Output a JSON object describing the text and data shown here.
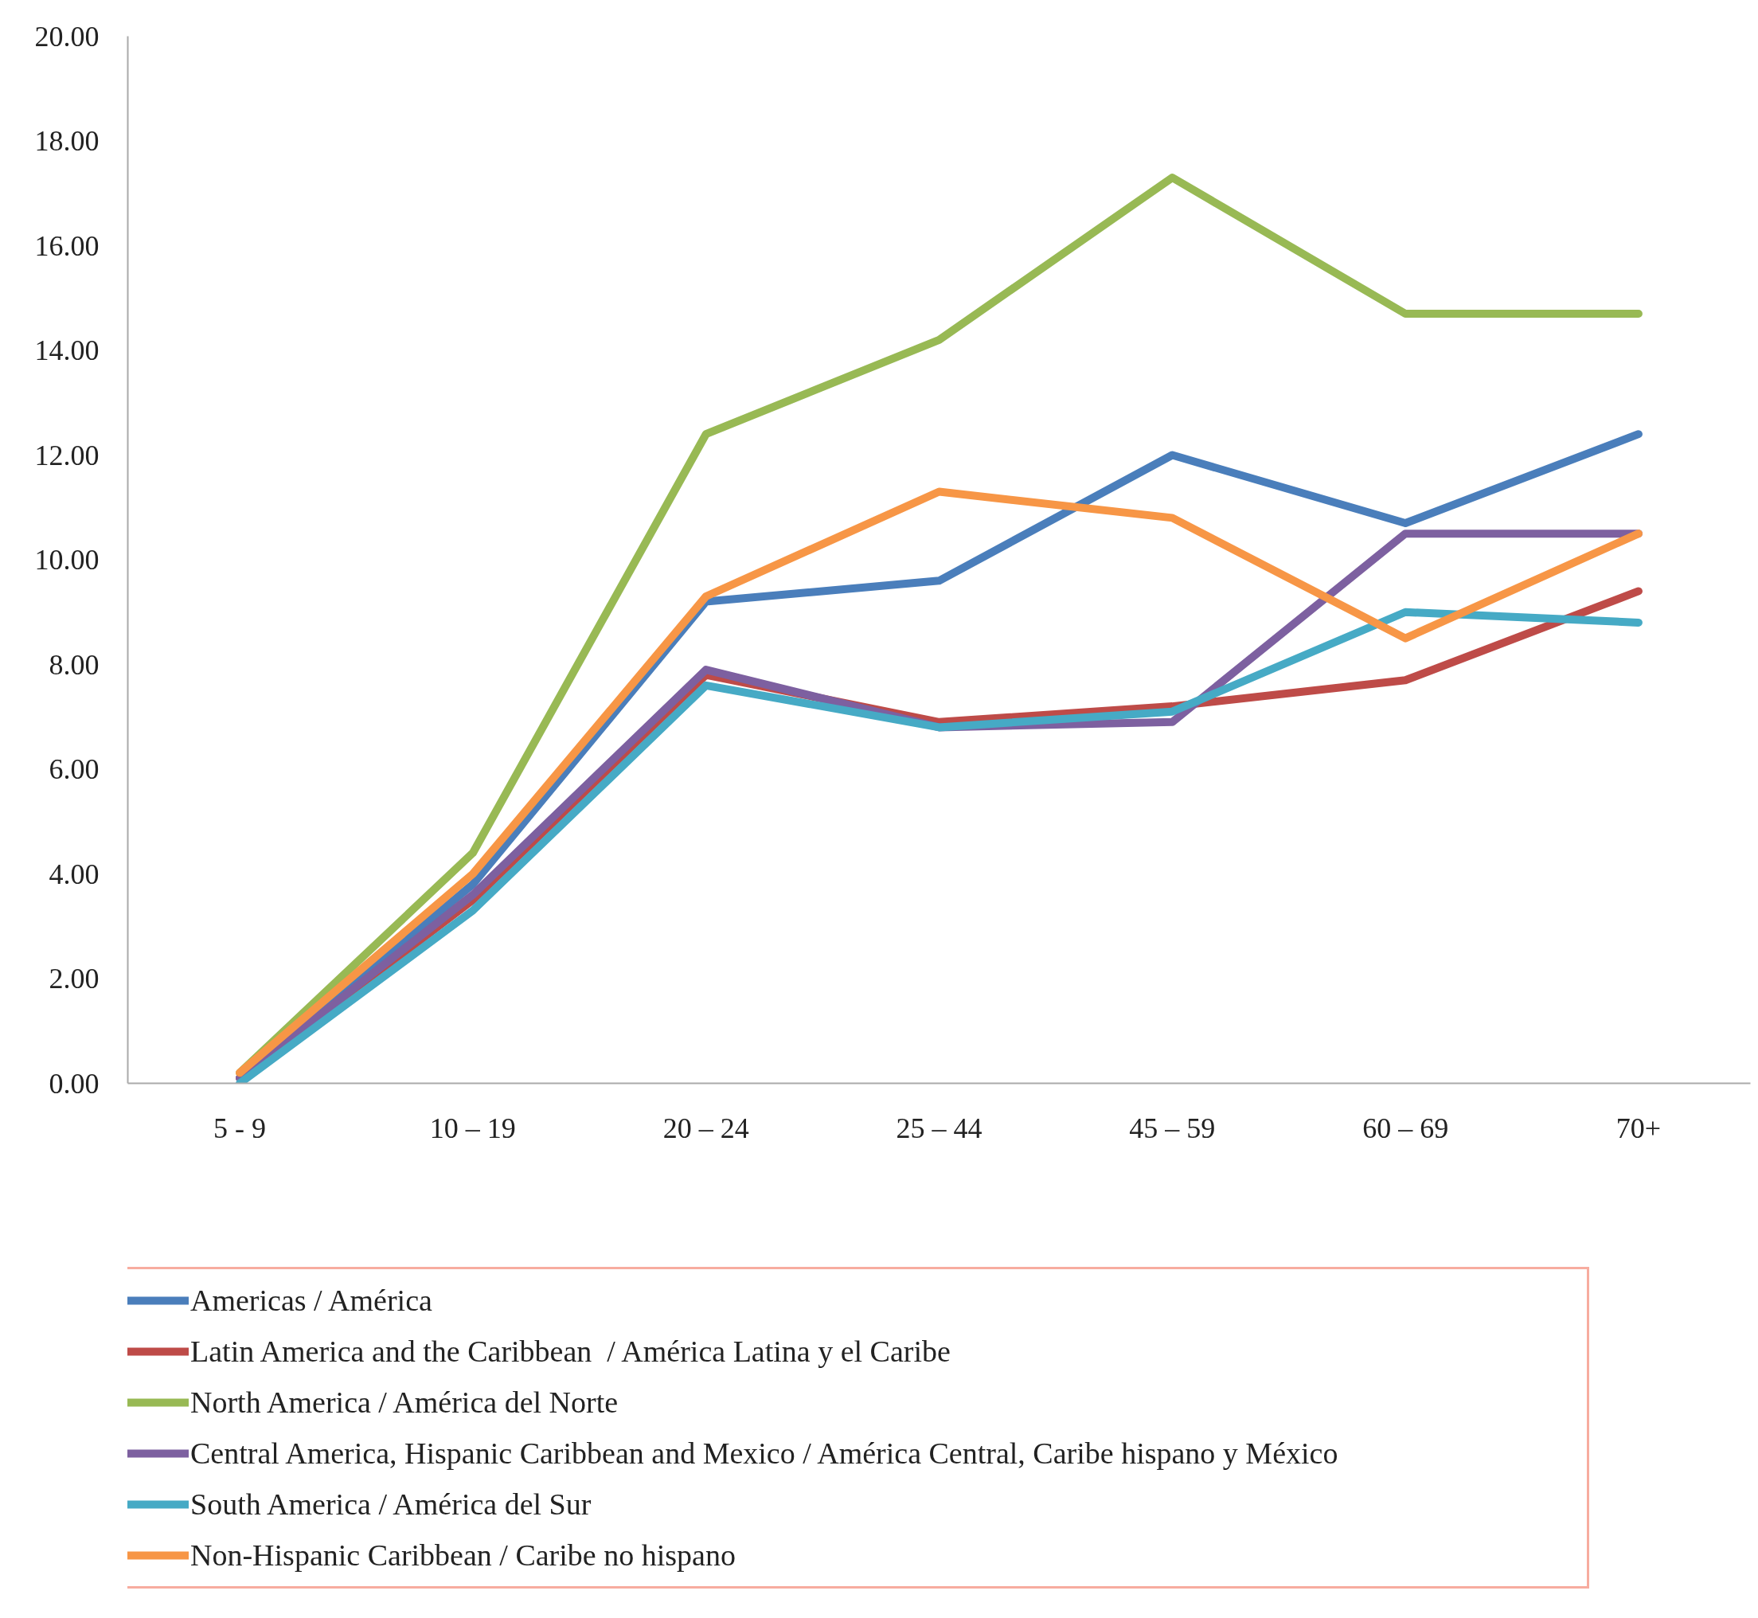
{
  "chart_data": {
    "type": "line",
    "categories": [
      "5 - 9",
      "10 – 19",
      "20 – 24",
      "25 – 44",
      "45 – 59",
      "60 – 69",
      "70+"
    ],
    "ylim": [
      0,
      20
    ],
    "yticks": [
      {
        "value": 0,
        "label": "0.00"
      },
      {
        "value": 2,
        "label": "2.00"
      },
      {
        "value": 4,
        "label": "4.00"
      },
      {
        "value": 6,
        "label": "6.00"
      },
      {
        "value": 8,
        "label": "8.00"
      },
      {
        "value": 10,
        "label": "10.00"
      },
      {
        "value": 12,
        "label": "12.00"
      },
      {
        "value": 14,
        "label": "14.00"
      },
      {
        "value": 16,
        "label": "16.00"
      },
      {
        "value": 18,
        "label": "18.00"
      },
      {
        "value": 20,
        "label": "20.00"
      }
    ],
    "grid": false,
    "legend": "bottom",
    "marker": "none",
    "line_style": "solid",
    "series": [
      {
        "name": "Americas / América",
        "color": "#4a7ebb",
        "values": [
          0.1,
          3.8,
          9.2,
          9.6,
          12.0,
          10.7,
          12.4
        ]
      },
      {
        "name": "Latin America and the Caribbean  / América Latina y el Caribe",
        "color": "#be4b48",
        "values": [
          0.1,
          3.5,
          7.8,
          6.9,
          7.2,
          7.7,
          9.4
        ]
      },
      {
        "name": "North America / América del Norte",
        "color": "#98b954",
        "values": [
          0.2,
          4.4,
          12.4,
          14.2,
          17.3,
          14.7,
          14.7
        ]
      },
      {
        "name": "Central America, Hispanic Caribbean and Mexico / América Central, Caribe hispano y México",
        "color": "#7d60a0",
        "values": [
          0.1,
          3.6,
          7.9,
          6.8,
          6.9,
          10.5,
          10.5
        ]
      },
      {
        "name": "South America / América del Sur",
        "color": "#46aac5",
        "values": [
          0.0,
          3.3,
          7.6,
          6.8,
          7.1,
          9.0,
          8.8
        ]
      },
      {
        "name": "Non-Hispanic Caribbean / Caribe no hispano",
        "color": "#f79646",
        "values": [
          0.2,
          4.0,
          9.3,
          11.3,
          10.8,
          8.5,
          10.5
        ]
      }
    ]
  }
}
